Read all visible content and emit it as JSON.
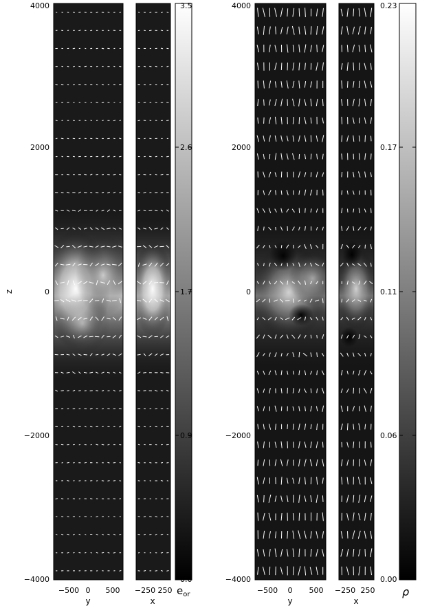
{
  "figure": {
    "panels": [
      {
        "id": "left",
        "colorbar_label": "e",
        "colorbar_label_sub": "or",
        "cbar_ticks": [
          "3.5",
          "2.6",
          "1.7",
          "0.9",
          "0.0"
        ]
      },
      {
        "id": "right",
        "colorbar_label": "ρ",
        "colorbar_label_sub": "",
        "cbar_ticks": [
          "0.23",
          "0.17",
          "0.11",
          "0.06",
          "0.00"
        ]
      }
    ],
    "z_axis_label": "z",
    "z_ticks": [
      "4000",
      "2000",
      "0",
      "−2000",
      "−4000"
    ],
    "y_axis_label": "y",
    "y_ticks": [
      "−500",
      "0",
      "500"
    ],
    "x_axis_label": "x",
    "x_ticks": [
      "−250",
      "250"
    ]
  },
  "chart_data": [
    {
      "type": "heatmap",
      "title": "",
      "quantity": "e_or",
      "colorbar": {
        "label": "e_or",
        "range": [
          0.0,
          3.5
        ],
        "ticks": [
          3.5,
          2.6,
          1.7,
          0.9,
          0.0
        ],
        "colormap": "grayscale"
      },
      "subplots": [
        {
          "name": "y-z slice",
          "xlabel": "y",
          "ylabel": "z",
          "xlim": [
            -700,
            700
          ],
          "ylim": [
            -4000,
            4000
          ],
          "xticks": [
            -500,
            0,
            500
          ],
          "yticks": [
            -4000,
            -2000,
            0,
            2000,
            4000
          ]
        },
        {
          "name": "x-z slice",
          "xlabel": "x",
          "xlim": [
            -350,
            350
          ],
          "ylim": [
            -4000,
            4000
          ],
          "xticks": [
            -250,
            250
          ]
        }
      ],
      "overlay": "velocity field arrows",
      "features": "bright band of high e_or near z = 0 (roughly z from -800 to 800), dark elsewhere"
    },
    {
      "type": "heatmap",
      "title": "",
      "quantity": "rho",
      "colorbar": {
        "label": "ρ",
        "range": [
          0.0,
          0.23
        ],
        "ticks": [
          0.23,
          0.17,
          0.11,
          0.06,
          0.0
        ],
        "colormap": "grayscale"
      },
      "subplots": [
        {
          "name": "y-z slice",
          "xlabel": "y",
          "xlim": [
            -700,
            700
          ],
          "ylim": [
            -4000,
            4000
          ],
          "xticks": [
            -500,
            0,
            500
          ],
          "yticks": [
            -4000,
            -2000,
            0,
            2000,
            4000
          ]
        },
        {
          "name": "x-z slice",
          "xlabel": "x",
          "xlim": [
            -350,
            350
          ],
          "ylim": [
            -4000,
            4000
          ],
          "xticks": [
            -250,
            250
          ]
        }
      ],
      "overlay": "velocity field arrows",
      "features": "brighter density structure near z = 0 with dark voids, dark elsewhere"
    }
  ]
}
